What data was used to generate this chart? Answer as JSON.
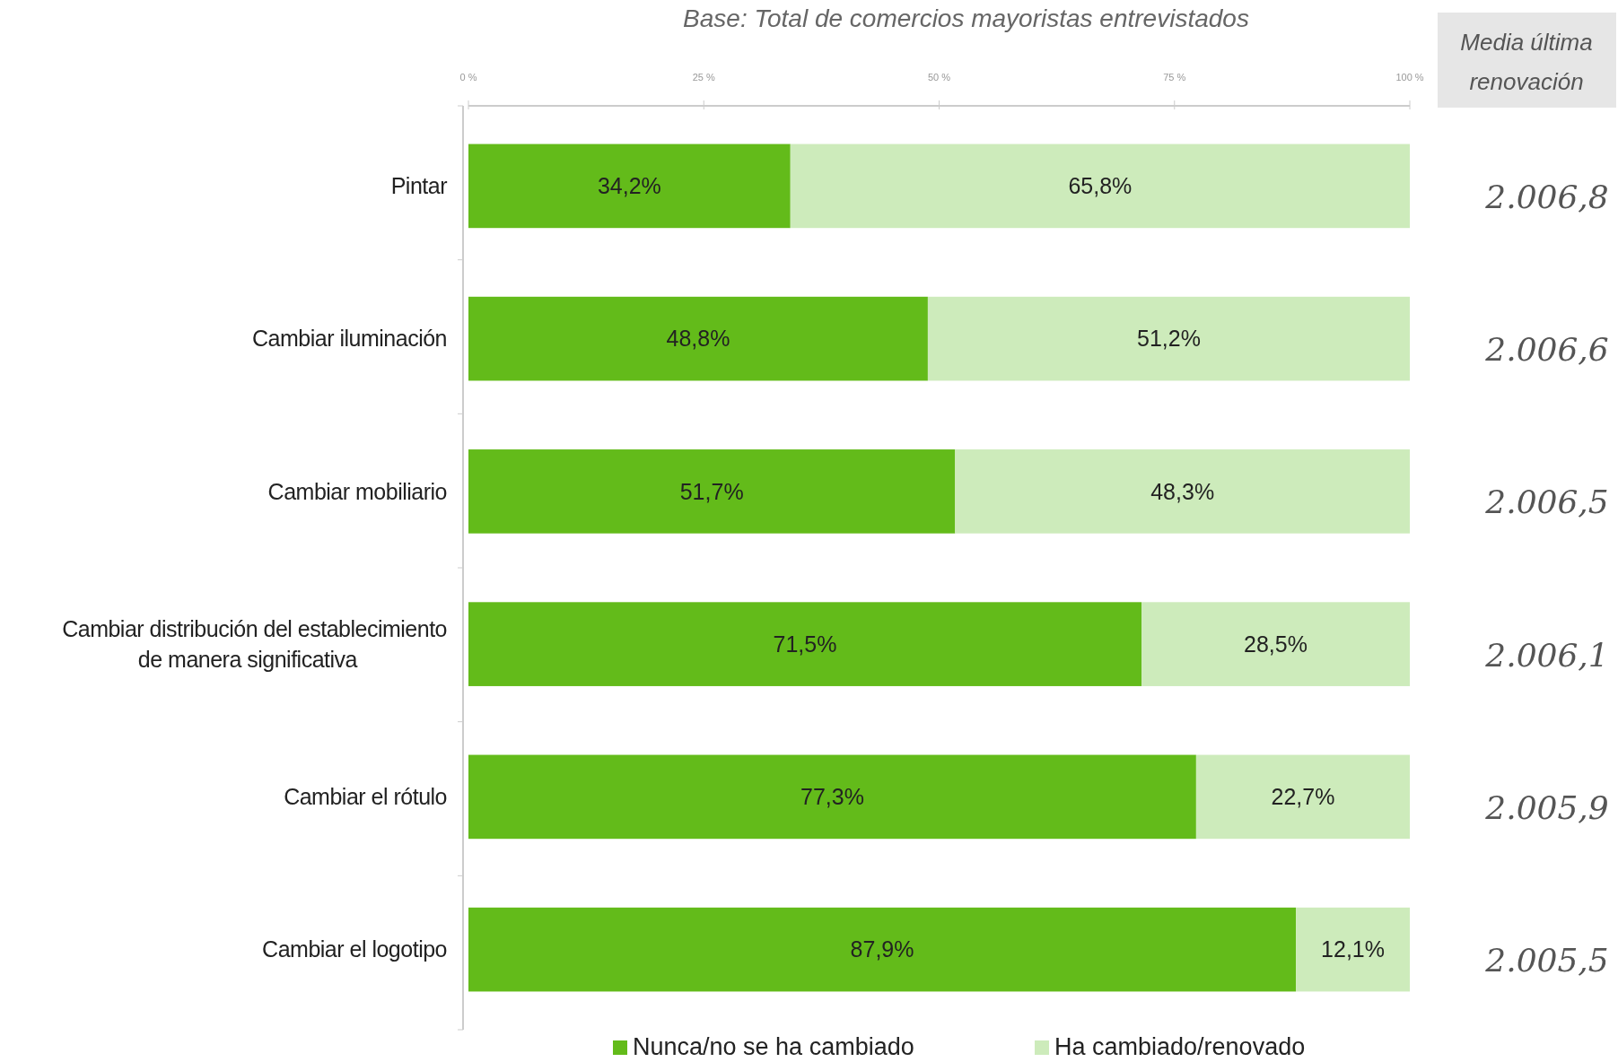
{
  "chart_data": {
    "type": "bar",
    "orientation": "horizontal",
    "stacked": true,
    "title": "Base: Total de comercios mayoristas entrevistados",
    "categories": [
      "Pintar",
      "Cambiar iluminación",
      "Cambiar mobiliario",
      "Cambiar distribución del establecimiento de manera significativa",
      "Cambiar el rótulo",
      "Cambiar el logotipo"
    ],
    "series": [
      {
        "name": "Nunca/no se ha cambiado",
        "color": "#63bb1a",
        "values": [
          34.2,
          48.8,
          51.7,
          71.5,
          77.3,
          87.9
        ],
        "value_labels": [
          "34,2%",
          "48,8%",
          "51,7%",
          "71,5%",
          "77,3%",
          "87,9%"
        ]
      },
      {
        "name": "Ha cambiado/renovado",
        "color": "#cdebbb",
        "values": [
          65.8,
          51.2,
          48.3,
          28.5,
          22.7,
          12.1
        ],
        "value_labels": [
          "65,8%",
          "51,2%",
          "48,3%",
          "28,5%",
          "22,7%",
          "12,1%"
        ]
      }
    ],
    "xlim": [
      0,
      100
    ],
    "xticks": [
      {
        "value": 0,
        "label": "0 %"
      },
      {
        "value": 25,
        "label": "25 %"
      },
      {
        "value": 50,
        "label": "50 %"
      },
      {
        "value": 75,
        "label": "75 %"
      },
      {
        "value": 100,
        "label": "100 %"
      }
    ],
    "legend": "bottom",
    "annotations": [
      "Media última renovación",
      "2.006,8",
      "2.006,6",
      "2.006,5",
      "2.006,1",
      "2.005,9",
      "2.005,5"
    ]
  }
}
